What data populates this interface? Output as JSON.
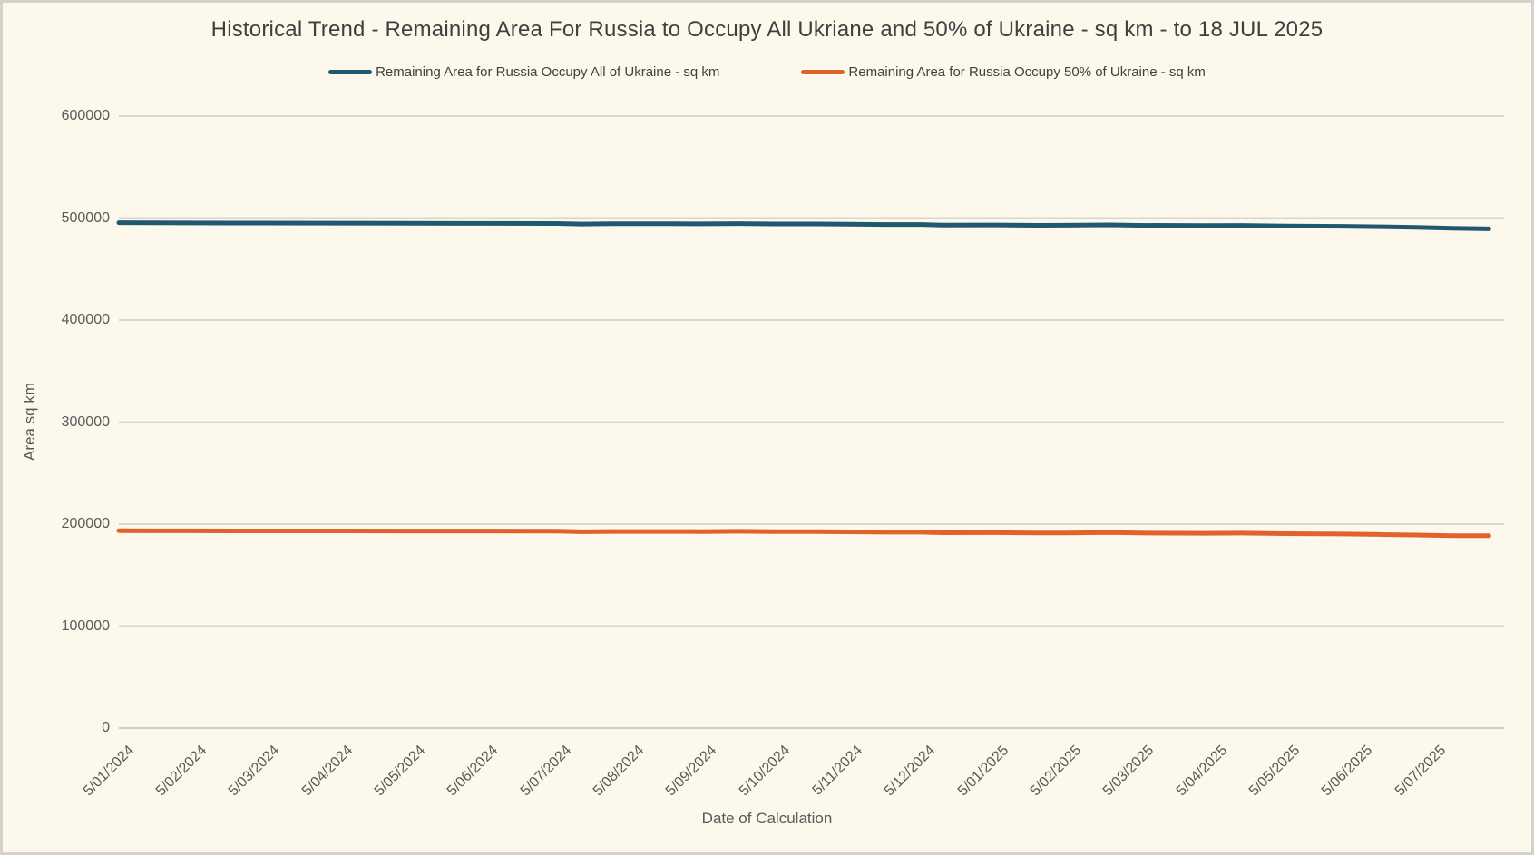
{
  "window": {
    "background_color": "#fdf8ec",
    "border_color": "#d5d2cc",
    "gridline_color": "#d9d6d0",
    "axis_line_color": "#cfccc6"
  },
  "chart_data": {
    "type": "line",
    "title": "Historical Trend - Remaining Area For Russia to Occupy All Ukriane and 50% of Ukraine - sq km - to 18 JUL 2025",
    "xlabel": "Date of Calculation",
    "ylabel": "Area sq km",
    "grid": true,
    "legend_position": "top",
    "ylim": [
      0,
      600000
    ],
    "y_tick_step": 100000,
    "y_tick_labels": [
      "0",
      "100000",
      "200000",
      "300000",
      "400000",
      "500000",
      "600000"
    ],
    "x_tick_labels": [
      "5/01/2024",
      "5/02/2024",
      "5/03/2024",
      "5/04/2024",
      "5/05/2024",
      "5/06/2024",
      "5/07/2024",
      "5/08/2024",
      "5/09/2024",
      "5/10/2024",
      "5/11/2024",
      "5/12/2024",
      "5/01/2025",
      "5/02/2025",
      "5/03/2025",
      "5/04/2025",
      "5/05/2025",
      "5/06/2025",
      "5/07/2025"
    ],
    "x_data_end": 18.8,
    "series": [
      {
        "name": "Remaining Area for Russia Occupy All of Ukraine - sq km",
        "color": "#20596f",
        "points": [
          [
            0,
            495500
          ],
          [
            0.5,
            495300
          ],
          [
            1,
            495200
          ],
          [
            2,
            495100
          ],
          [
            3,
            495000
          ],
          [
            4,
            494900
          ],
          [
            5,
            494800
          ],
          [
            6,
            494700
          ],
          [
            6.35,
            494100
          ],
          [
            6.75,
            494400
          ],
          [
            7.6,
            494400
          ],
          [
            8,
            494300
          ],
          [
            8.5,
            494550
          ],
          [
            9,
            494250
          ],
          [
            9.6,
            494250
          ],
          [
            10,
            494050
          ],
          [
            10.5,
            493700
          ],
          [
            11,
            493650
          ],
          [
            11.3,
            493200
          ],
          [
            12,
            493250
          ],
          [
            12.6,
            492900
          ],
          [
            13,
            493000
          ],
          [
            13.6,
            493350
          ],
          [
            14,
            492900
          ],
          [
            14.9,
            492600
          ],
          [
            15.4,
            492800
          ],
          [
            16,
            492300
          ],
          [
            16.8,
            491900
          ],
          [
            17.3,
            491500
          ],
          [
            17.8,
            490900
          ],
          [
            18.3,
            490000
          ],
          [
            18.8,
            489400
          ]
        ]
      },
      {
        "name": "Remaining Area for Russia Occupy 50% of Ukraine - sq km",
        "color": "#e2622b",
        "points": [
          [
            0,
            193600
          ],
          [
            0.5,
            193450
          ],
          [
            1,
            193400
          ],
          [
            2,
            193350
          ],
          [
            3,
            193300
          ],
          [
            4,
            193250
          ],
          [
            5,
            193200
          ],
          [
            6,
            193100
          ],
          [
            6.35,
            192500
          ],
          [
            6.75,
            192800
          ],
          [
            7.6,
            192800
          ],
          [
            8,
            192700
          ],
          [
            8.5,
            192950
          ],
          [
            9,
            192650
          ],
          [
            9.6,
            192650
          ],
          [
            10,
            192450
          ],
          [
            10.5,
            192100
          ],
          [
            11,
            192050
          ],
          [
            11.3,
            191600
          ],
          [
            12,
            191650
          ],
          [
            12.6,
            191300
          ],
          [
            13,
            191400
          ],
          [
            13.6,
            191750
          ],
          [
            14,
            191300
          ],
          [
            14.9,
            191000
          ],
          [
            15.4,
            191200
          ],
          [
            16,
            190700
          ],
          [
            16.8,
            190300
          ],
          [
            17.3,
            189900
          ],
          [
            17.8,
            189300
          ],
          [
            18.3,
            188700
          ],
          [
            18.8,
            188600
          ]
        ]
      }
    ]
  }
}
